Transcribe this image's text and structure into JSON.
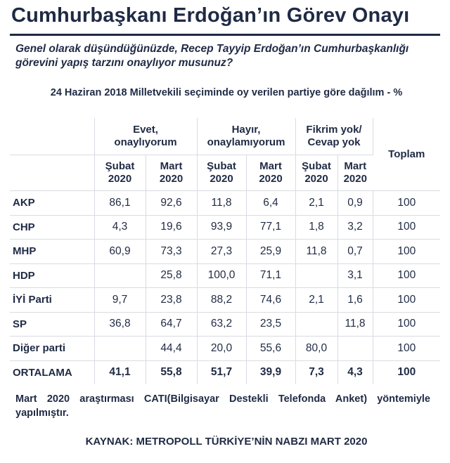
{
  "title": "Cumhurbaşkanı Erdoğan’ın Görev Onayı",
  "question": "Genel olarak düşündüğünüzde, Recep Tayyip Erdoğan’ın Cumhurbaşkanlığı görevini yapış tarzını onaylıyor musunuz?",
  "subtitle": "24 Haziran 2018 Milletvekili seçiminde oy verilen partiye göre dağılım - %",
  "note": "Mart 2020 araştırması CATI(Bilgisayar Destekli Telefonda Anket) yöntemiyle yapılmıştır.",
  "source": "KAYNAK: METROPOLL TÜRKİYE’NİN NABZI MART 2020",
  "chart_data": {
    "type": "table",
    "column_groups": [
      {
        "label_line1": "Evet,",
        "label_line2": "onaylıyorum"
      },
      {
        "label_line1": "Hayır,",
        "label_line2": "onaylamıyorum"
      },
      {
        "label_line1": "Fikrim yok/",
        "label_line2": "Cevap yok"
      }
    ],
    "total_label": "Toplam",
    "periods": [
      {
        "line1": "Şubat",
        "line2": "2020"
      },
      {
        "line1": "Mart",
        "line2": "2020"
      }
    ],
    "rows": [
      {
        "party": "AKP",
        "values": [
          "86,1",
          "92,6",
          "11,8",
          "6,4",
          "2,1",
          "0,9"
        ],
        "total": "100"
      },
      {
        "party": "CHP",
        "values": [
          "4,3",
          "19,6",
          "93,9",
          "77,1",
          "1,8",
          "3,2"
        ],
        "total": "100"
      },
      {
        "party": "MHP",
        "values": [
          "60,9",
          "73,3",
          "27,3",
          "25,9",
          "11,8",
          "0,7"
        ],
        "total": "100"
      },
      {
        "party": "HDP",
        "values": [
          "",
          "25,8",
          "100,0",
          "71,1",
          "",
          "3,1"
        ],
        "total": "100"
      },
      {
        "party": "İYİ Parti",
        "values": [
          "9,7",
          "23,8",
          "88,2",
          "74,6",
          "2,1",
          "1,6"
        ],
        "total": "100"
      },
      {
        "party": "SP",
        "values": [
          "36,8",
          "64,7",
          "63,2",
          "23,5",
          "",
          "11,8"
        ],
        "total": "100"
      },
      {
        "party": "Diğer parti",
        "values": [
          "",
          "44,4",
          "20,0",
          "55,6",
          "80,0",
          ""
        ],
        "total": "100"
      },
      {
        "party": "ORTALAMA",
        "values": [
          "41,1",
          "55,8",
          "51,7",
          "39,9",
          "7,3",
          "4,3"
        ],
        "total": "100"
      }
    ]
  }
}
